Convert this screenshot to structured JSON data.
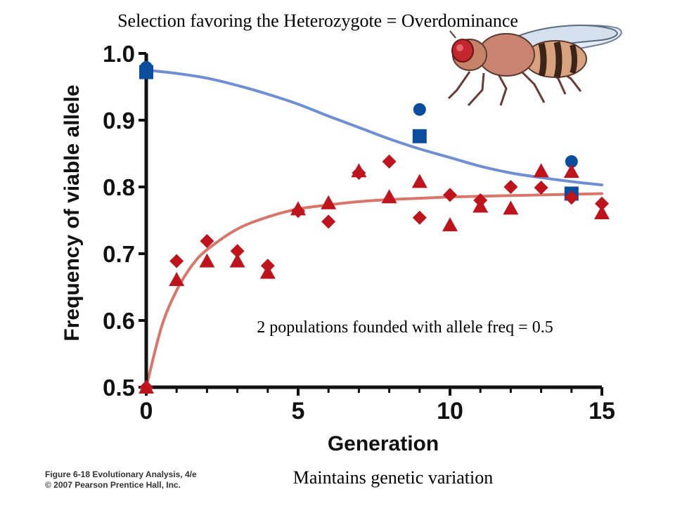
{
  "header": {
    "title": "Selection favoring the Heterozygote = Overdominance"
  },
  "annotation": "2 populations founded with allele freq = 0.5",
  "footer": {
    "subtitle": "Maintains genetic variation",
    "credit_line1": "Figure 6-18 Evolutionary Analysis, 4/e",
    "credit_line2": "© 2007 Pearson Prentice Hall, Inc."
  },
  "colors": {
    "blue": "#0a4d9e",
    "blue_curve": "#6f8fd4",
    "red": "#c0141c",
    "red_curve": "#d9756a",
    "axis": "#111111"
  },
  "icons": {
    "fly": "fruit-fly-illustration"
  },
  "chart_data": {
    "type": "scatter",
    "title": "",
    "xlabel": "Generation",
    "ylabel": "Frequency of viable allele",
    "xlim": [
      0,
      15
    ],
    "ylim": [
      0.5,
      1.0
    ],
    "xticks": [
      "0",
      "5",
      "10",
      "15"
    ],
    "yticks": [
      "0.5",
      "0.6",
      "0.7",
      "0.8",
      "0.9",
      "1.0"
    ],
    "grid": false,
    "legend": "none",
    "series": [
      {
        "marker": "circle",
        "color": "blue",
        "x": [
          0,
          9,
          14
        ],
        "y": [
          0.979,
          0.916,
          0.838
        ]
      },
      {
        "marker": "square",
        "color": "blue",
        "x": [
          0,
          9,
          14
        ],
        "y": [
          0.972,
          0.876,
          0.79
        ]
      },
      {
        "marker": "diamond",
        "color": "red",
        "x": [
          0,
          1,
          2,
          3,
          4,
          5,
          6,
          7,
          8,
          9,
          10,
          11,
          12,
          13,
          14,
          15
        ],
        "y": [
          0.5,
          0.689,
          0.719,
          0.704,
          0.682,
          0.764,
          0.748,
          0.821,
          0.838,
          0.754,
          0.788,
          0.78,
          0.8,
          0.799,
          0.784,
          0.775
        ]
      },
      {
        "marker": "triangle",
        "color": "red",
        "x": [
          0,
          1,
          2,
          3,
          4,
          5,
          6,
          7,
          8,
          9,
          10,
          11,
          12,
          13,
          14,
          15
        ],
        "y": [
          0.5,
          0.661,
          0.689,
          0.689,
          0.672,
          0.767,
          0.776,
          0.824,
          0.785,
          0.808,
          0.743,
          0.771,
          0.768,
          0.824,
          0.823,
          0.761
        ]
      }
    ],
    "curves": [
      {
        "color": "blue",
        "x": [
          0,
          1,
          2,
          3,
          4,
          5,
          6,
          7,
          8,
          9,
          10,
          11,
          12,
          13,
          14,
          15
        ],
        "y": [
          0.975,
          0.97,
          0.963,
          0.952,
          0.939,
          0.924,
          0.906,
          0.889,
          0.872,
          0.857,
          0.844,
          0.831,
          0.821,
          0.814,
          0.808,
          0.803
        ]
      },
      {
        "color": "red",
        "x": [
          0,
          0.5,
          1,
          1.5,
          2,
          3,
          4,
          5,
          6,
          7,
          8,
          9,
          10,
          11,
          12,
          13,
          14,
          15
        ],
        "y": [
          0.5,
          0.59,
          0.645,
          0.682,
          0.706,
          0.737,
          0.755,
          0.767,
          0.773,
          0.778,
          0.781,
          0.783,
          0.785,
          0.786,
          0.787,
          0.788,
          0.789,
          0.79
        ]
      }
    ]
  }
}
